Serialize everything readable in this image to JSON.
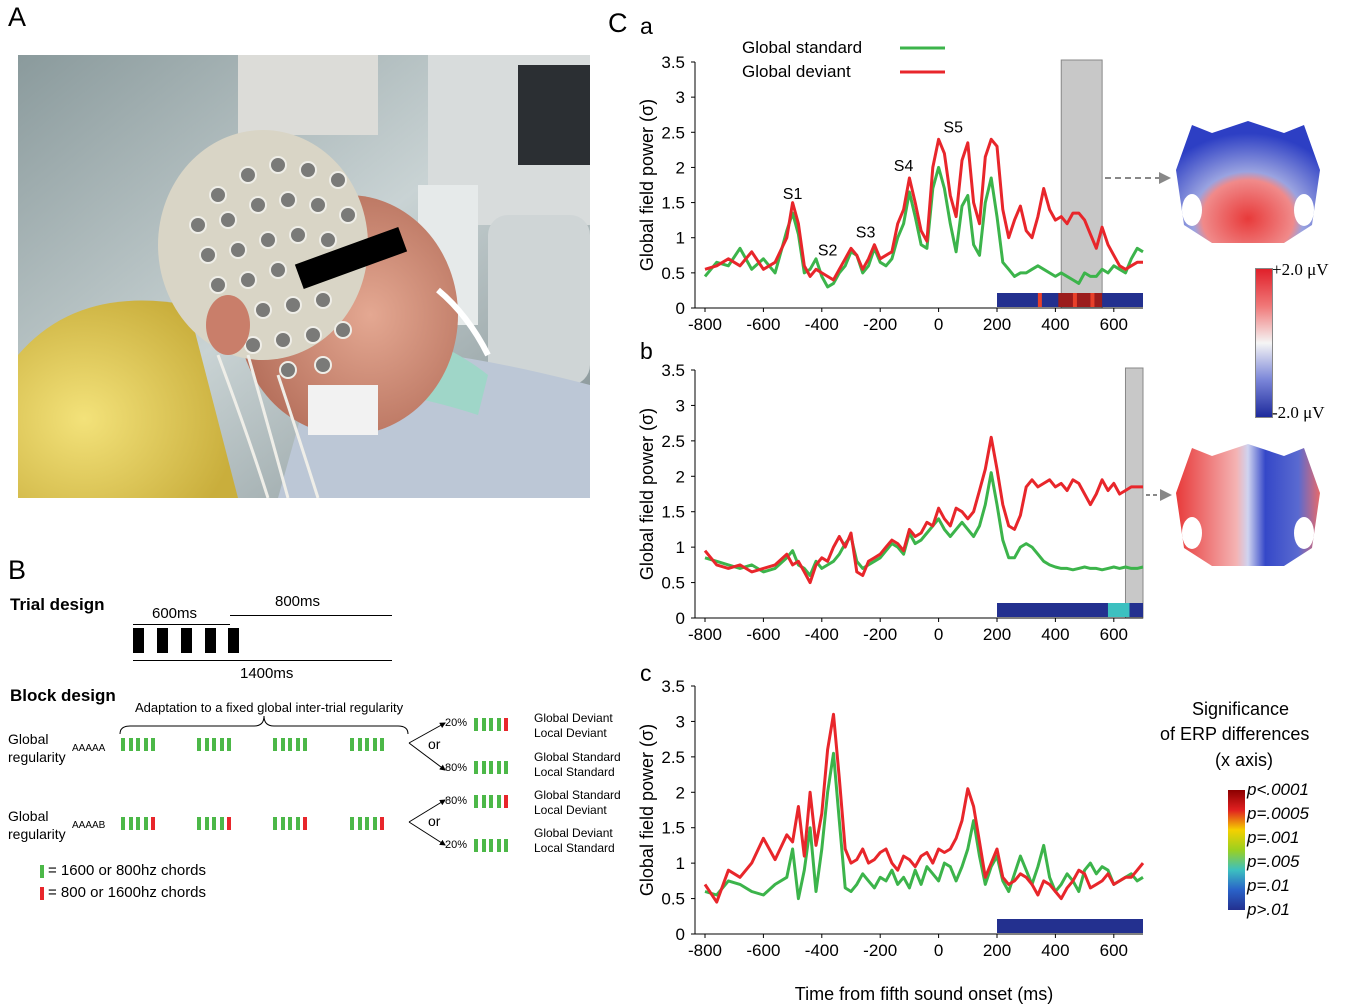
{
  "panels": {
    "A": "A",
    "B": "B",
    "C": "C",
    "a": "a",
    "b": "b",
    "c": "c"
  },
  "photo": {
    "description_icon": "eeg-cap-patient-photo"
  },
  "trial_design": {
    "title": "Trial design",
    "label_600": "600ms",
    "label_800": "800ms",
    "label_1400": "1400ms"
  },
  "block_design": {
    "title": "Block design",
    "brace_label": "Adaptation to a fixed global inter-trial regularity",
    "row1": {
      "label1": "Global",
      "label2": "regularity",
      "seq": "AAAAA"
    },
    "row2": {
      "label1": "Global",
      "label2": "regularity",
      "seq": "AAAAB"
    },
    "or": "or",
    "pct20": "20%",
    "pct80": "80%",
    "outcomes": [
      {
        "l1": "Global Deviant",
        "l2": "Local Deviant"
      },
      {
        "l1": "Global Standard",
        "l2": "Local Standard"
      },
      {
        "l1": "Global Standard",
        "l2": "Local Deviant"
      },
      {
        "l1": "Global Deviant",
        "l2": "Local Standard"
      }
    ],
    "key_green": "= 1600 or 800hz chords",
    "key_red": "= 800 or 1600hz chords"
  },
  "legend": {
    "standard": "Global standard",
    "deviant": "Global deviant"
  },
  "colors": {
    "standard": "#3cb44b",
    "deviant": "#e8262b",
    "sig_bar": "#23308f",
    "window": "#c8c8c8"
  },
  "scalp_colorbar": {
    "max": "+2.0 μV",
    "min": "-2.0 μV"
  },
  "significance": {
    "title1": "Significance",
    "title2": "of ERP differences",
    "title3": "(x axis)",
    "levels": [
      "p<.0001",
      "p=.0005",
      "p=.001",
      "p=.005",
      "p=.01",
      "p>.01"
    ]
  },
  "chart_data": [
    {
      "type": "line",
      "panel": "a",
      "ylabel": "Global field power (σ)",
      "xlabel": "",
      "xlim": [
        -800,
        700
      ],
      "ylim": [
        0,
        3.5
      ],
      "xticks": [
        -800,
        -600,
        -400,
        -200,
        0,
        200,
        400,
        600
      ],
      "yticks": [
        0,
        0.5,
        1,
        1.5,
        2,
        2.5,
        3,
        3.5
      ],
      "annotations": [
        {
          "text": "S1",
          "x": -500,
          "y": 1.55
        },
        {
          "text": "S2",
          "x": -380,
          "y": 0.75
        },
        {
          "text": "S3",
          "x": -250,
          "y": 1.0
        },
        {
          "text": "S4",
          "x": -120,
          "y": 1.95
        },
        {
          "text": "S5",
          "x": 50,
          "y": 2.5
        }
      ],
      "window": [
        420,
        560
      ],
      "sig_range": [
        200,
        700
      ],
      "series": [
        {
          "name": "Global standard",
          "x": [
            -800,
            -760,
            -720,
            -680,
            -640,
            -600,
            -560,
            -520,
            -500,
            -480,
            -460,
            -440,
            -420,
            -400,
            -380,
            -360,
            -340,
            -320,
            -300,
            -280,
            -260,
            -240,
            -220,
            -200,
            -180,
            -160,
            -140,
            -120,
            -100,
            -80,
            -60,
            -40,
            -20,
            0,
            20,
            40,
            60,
            80,
            100,
            120,
            140,
            160,
            180,
            200,
            220,
            240,
            260,
            280,
            300,
            320,
            340,
            360,
            380,
            400,
            420,
            440,
            460,
            480,
            500,
            520,
            540,
            560,
            580,
            600,
            620,
            640,
            660,
            680,
            700
          ],
          "y": [
            0.45,
            0.65,
            0.6,
            0.85,
            0.55,
            0.7,
            0.5,
            1.1,
            1.35,
            1.05,
            0.5,
            0.55,
            0.7,
            0.45,
            0.3,
            0.35,
            0.5,
            0.6,
            0.8,
            0.75,
            0.5,
            0.6,
            0.85,
            0.65,
            0.6,
            0.7,
            1.0,
            1.2,
            1.65,
            1.3,
            0.9,
            0.85,
            1.7,
            2.0,
            1.7,
            1.2,
            0.8,
            1.45,
            1.6,
            0.9,
            0.75,
            1.5,
            1.85,
            1.3,
            0.65,
            0.55,
            0.45,
            0.5,
            0.5,
            0.55,
            0.6,
            0.55,
            0.5,
            0.45,
            0.5,
            0.45,
            0.4,
            0.35,
            0.5,
            0.45,
            0.45,
            0.55,
            0.5,
            0.6,
            0.55,
            0.5,
            0.7,
            0.85,
            0.8
          ]
        },
        {
          "name": "Global deviant",
          "x": [
            -800,
            -760,
            -720,
            -680,
            -640,
            -600,
            -560,
            -520,
            -500,
            -480,
            -460,
            -440,
            -420,
            -400,
            -380,
            -360,
            -340,
            -320,
            -300,
            -280,
            -260,
            -240,
            -220,
            -200,
            -180,
            -160,
            -140,
            -120,
            -100,
            -80,
            -60,
            -40,
            -20,
            0,
            20,
            40,
            60,
            80,
            100,
            120,
            140,
            160,
            180,
            200,
            220,
            240,
            260,
            280,
            300,
            320,
            340,
            360,
            380,
            400,
            420,
            440,
            460,
            480,
            500,
            520,
            540,
            560,
            580,
            600,
            620,
            640,
            660,
            680,
            700
          ],
          "y": [
            0.55,
            0.6,
            0.7,
            0.6,
            0.8,
            0.55,
            0.65,
            1.0,
            1.5,
            1.2,
            0.6,
            0.45,
            0.55,
            0.5,
            0.45,
            0.4,
            0.55,
            0.7,
            0.85,
            0.75,
            0.55,
            0.7,
            0.9,
            0.7,
            0.75,
            0.8,
            1.2,
            1.4,
            1.85,
            1.5,
            1.1,
            0.95,
            2.0,
            2.4,
            2.2,
            1.6,
            1.3,
            2.1,
            2.35,
            1.5,
            1.2,
            2.15,
            2.4,
            2.3,
            1.4,
            1.0,
            1.25,
            1.45,
            1.1,
            1.0,
            1.3,
            1.7,
            1.4,
            1.25,
            1.3,
            1.2,
            1.35,
            1.35,
            1.25,
            1.05,
            0.85,
            1.15,
            0.9,
            0.75,
            0.6,
            0.55,
            0.6,
            0.65,
            0.65
          ]
        }
      ]
    },
    {
      "type": "line",
      "panel": "b",
      "ylabel": "Global field power (σ)",
      "xlabel": "",
      "xlim": [
        -800,
        700
      ],
      "ylim": [
        0,
        3.5
      ],
      "xticks": [
        -800,
        -600,
        -400,
        -200,
        0,
        200,
        400,
        600
      ],
      "yticks": [
        0,
        0.5,
        1,
        1.5,
        2,
        2.5,
        3,
        3.5
      ],
      "window": [
        640,
        700
      ],
      "sig_range": [
        200,
        700
      ],
      "series": [
        {
          "name": "Global standard",
          "x": [
            -800,
            -760,
            -720,
            -680,
            -640,
            -600,
            -560,
            -520,
            -500,
            -480,
            -460,
            -440,
            -420,
            -400,
            -380,
            -360,
            -340,
            -320,
            -300,
            -280,
            -260,
            -240,
            -220,
            -200,
            -180,
            -160,
            -140,
            -120,
            -100,
            -80,
            -60,
            -40,
            -20,
            0,
            20,
            40,
            60,
            80,
            100,
            120,
            140,
            160,
            180,
            200,
            220,
            240,
            260,
            280,
            300,
            320,
            340,
            360,
            380,
            400,
            420,
            440,
            460,
            480,
            500,
            520,
            540,
            560,
            580,
            600,
            620,
            640,
            660,
            680,
            700
          ],
          "y": [
            0.85,
            0.8,
            0.75,
            0.7,
            0.75,
            0.65,
            0.7,
            0.85,
            0.95,
            0.75,
            0.7,
            0.6,
            0.8,
            0.7,
            0.75,
            0.8,
            0.9,
            1.05,
            1.15,
            0.8,
            0.7,
            0.75,
            0.8,
            0.85,
            0.95,
            1.05,
            1.0,
            0.9,
            1.2,
            1.05,
            1.1,
            1.2,
            1.3,
            1.4,
            1.25,
            1.15,
            1.25,
            1.35,
            1.25,
            1.15,
            1.3,
            1.6,
            2.05,
            1.6,
            1.1,
            0.85,
            0.85,
            1.0,
            1.05,
            1.0,
            0.9,
            0.8,
            0.75,
            0.72,
            0.7,
            0.7,
            0.68,
            0.7,
            0.72,
            0.7,
            0.7,
            0.68,
            0.7,
            0.72,
            0.7,
            0.72,
            0.7,
            0.7,
            0.72
          ]
        },
        {
          "name": "Global deviant",
          "x": [
            -800,
            -760,
            -720,
            -680,
            -640,
            -600,
            -560,
            -520,
            -500,
            -480,
            -460,
            -440,
            -420,
            -400,
            -380,
            -360,
            -340,
            -320,
            -300,
            -280,
            -260,
            -240,
            -220,
            -200,
            -180,
            -160,
            -140,
            -120,
            -100,
            -80,
            -60,
            -40,
            -20,
            0,
            20,
            40,
            60,
            80,
            100,
            120,
            140,
            160,
            180,
            200,
            220,
            240,
            260,
            280,
            300,
            320,
            340,
            360,
            380,
            400,
            420,
            440,
            460,
            480,
            500,
            520,
            540,
            560,
            580,
            600,
            620,
            640,
            660,
            680,
            700
          ],
          "y": [
            0.95,
            0.75,
            0.7,
            0.75,
            0.65,
            0.7,
            0.75,
            0.9,
            0.75,
            0.8,
            0.65,
            0.5,
            0.75,
            0.85,
            0.8,
            1.0,
            1.15,
            1.0,
            1.2,
            0.65,
            0.6,
            0.8,
            0.85,
            0.9,
            1.0,
            1.1,
            1.05,
            0.95,
            1.25,
            1.15,
            1.2,
            1.35,
            1.3,
            1.55,
            1.4,
            1.3,
            1.55,
            1.5,
            1.4,
            1.5,
            1.8,
            2.1,
            2.55,
            2.1,
            1.6,
            1.3,
            1.25,
            1.45,
            1.85,
            1.95,
            1.85,
            1.9,
            1.95,
            1.85,
            1.9,
            1.8,
            1.95,
            1.9,
            1.75,
            1.6,
            1.75,
            1.95,
            1.8,
            1.9,
            1.75,
            1.8,
            1.85,
            1.85,
            1.85
          ]
        }
      ]
    },
    {
      "type": "line",
      "panel": "c",
      "ylabel": "Global field power (σ)",
      "xlabel": "Time from fifth sound onset (ms)",
      "xlim": [
        -800,
        700
      ],
      "ylim": [
        0,
        3.5
      ],
      "xticks": [
        -800,
        -600,
        -400,
        -200,
        0,
        200,
        400,
        600
      ],
      "yticks": [
        0,
        0.5,
        1,
        1.5,
        2,
        2.5,
        3,
        3.5
      ],
      "sig_range": [
        200,
        700
      ],
      "series": [
        {
          "name": "Global standard",
          "x": [
            -800,
            -760,
            -720,
            -680,
            -640,
            -600,
            -560,
            -520,
            -500,
            -480,
            -460,
            -440,
            -420,
            -400,
            -380,
            -360,
            -340,
            -320,
            -300,
            -280,
            -260,
            -240,
            -220,
            -200,
            -180,
            -160,
            -140,
            -120,
            -100,
            -80,
            -60,
            -40,
            -20,
            0,
            20,
            40,
            60,
            80,
            100,
            120,
            140,
            160,
            180,
            200,
            220,
            240,
            260,
            280,
            300,
            320,
            340,
            360,
            380,
            400,
            420,
            440,
            460,
            480,
            500,
            520,
            540,
            560,
            580,
            600,
            620,
            640,
            660,
            680,
            700
          ],
          "y": [
            0.6,
            0.55,
            0.75,
            0.7,
            0.6,
            0.55,
            0.7,
            0.8,
            1.2,
            0.5,
            0.9,
            1.5,
            0.6,
            1.2,
            2.0,
            2.55,
            1.6,
            0.65,
            0.6,
            0.7,
            0.85,
            0.75,
            0.65,
            0.8,
            0.75,
            0.9,
            0.7,
            0.8,
            0.65,
            0.9,
            0.7,
            0.95,
            0.85,
            0.75,
            1.0,
            0.95,
            0.75,
            0.95,
            1.2,
            1.6,
            1.1,
            0.7,
            0.95,
            1.1,
            0.75,
            0.6,
            0.85,
            1.1,
            0.9,
            0.7,
            0.95,
            1.25,
            0.8,
            0.6,
            0.7,
            0.85,
            0.75,
            0.6,
            0.9,
            1.0,
            0.85,
            0.95,
            0.9,
            0.7,
            0.75,
            0.8,
            0.85,
            0.75,
            0.8
          ]
        },
        {
          "name": "Global deviant",
          "x": [
            -800,
            -760,
            -720,
            -680,
            -640,
            -600,
            -560,
            -520,
            -500,
            -480,
            -460,
            -440,
            -420,
            -400,
            -380,
            -360,
            -340,
            -320,
            -300,
            -280,
            -260,
            -240,
            -220,
            -200,
            -180,
            -160,
            -140,
            -120,
            -100,
            -80,
            -60,
            -40,
            -20,
            0,
            20,
            40,
            60,
            80,
            100,
            120,
            140,
            160,
            180,
            200,
            220,
            240,
            260,
            280,
            300,
            320,
            340,
            360,
            380,
            400,
            420,
            440,
            460,
            480,
            500,
            520,
            540,
            560,
            580,
            600,
            620,
            640,
            660,
            680,
            700
          ],
          "y": [
            0.7,
            0.45,
            0.9,
            0.8,
            1.0,
            1.35,
            1.05,
            1.4,
            1.3,
            1.8,
            1.1,
            2.0,
            1.25,
            1.7,
            2.6,
            3.1,
            2.2,
            1.2,
            1.0,
            1.05,
            1.2,
            1.0,
            1.05,
            1.15,
            1.2,
            1.0,
            0.9,
            1.1,
            1.05,
            0.95,
            1.1,
            1.15,
            1.0,
            1.2,
            1.15,
            1.2,
            1.35,
            1.6,
            2.05,
            1.8,
            1.3,
            0.8,
            1.0,
            1.2,
            0.8,
            0.7,
            0.75,
            0.85,
            0.8,
            0.7,
            0.55,
            0.75,
            0.7,
            0.6,
            0.5,
            0.65,
            0.75,
            0.9,
            0.85,
            0.65,
            0.7,
            0.75,
            0.85,
            0.7,
            0.75,
            0.8,
            0.8,
            0.9,
            1.0
          ]
        }
      ]
    }
  ]
}
